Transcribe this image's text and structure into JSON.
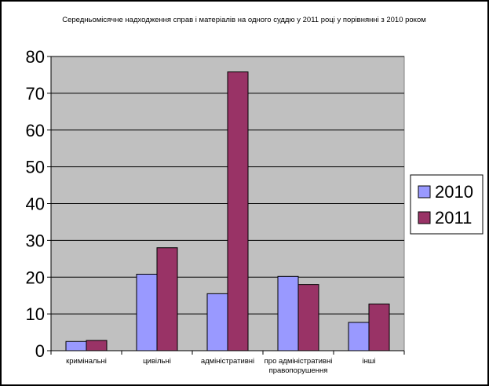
{
  "chart_data": {
    "type": "bar",
    "title": "Середньомісячне надходження справ і матеріалів на одного суддю у 2011 році у порівнянні з 2010 роком",
    "categories": [
      [
        "кримінальні"
      ],
      [
        "цивільні"
      ],
      [
        "адміністративні"
      ],
      [
        "про адміністративні",
        "правопорушення"
      ],
      [
        "інші"
      ]
    ],
    "series": [
      {
        "name": "2010",
        "values": [
          2.5,
          20.8,
          15.5,
          20.2,
          7.7
        ],
        "color": "#9999ff"
      },
      {
        "name": "2011",
        "values": [
          2.8,
          28.0,
          75.8,
          18.0,
          12.7
        ],
        "color": "#993366"
      }
    ],
    "ylim": [
      0,
      80
    ],
    "yticks": [
      0,
      10,
      20,
      30,
      40,
      50,
      60,
      70,
      80
    ],
    "grid": true,
    "plot_background": "#c0c0c0",
    "legend_position": "right",
    "xlabel": "",
    "ylabel": ""
  }
}
